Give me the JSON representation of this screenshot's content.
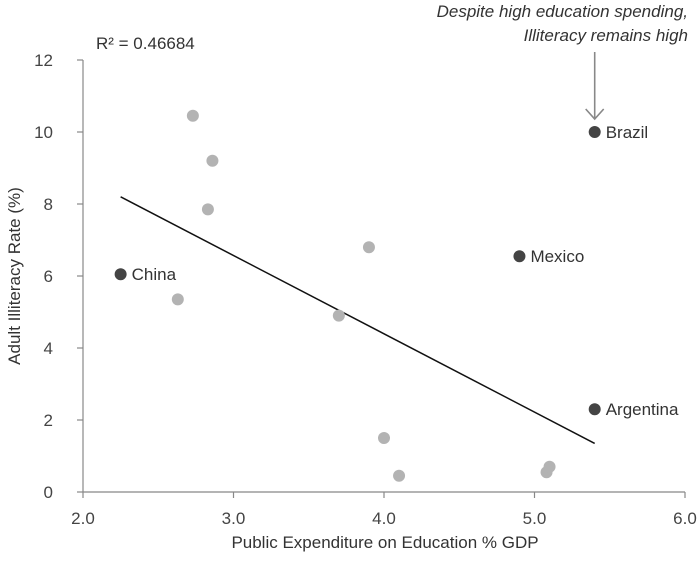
{
  "chart_data": {
    "type": "scatter",
    "xlabel": "Public Expenditure on Education % GDP",
    "ylabel": "Adult Illiteracy Rate (%)",
    "xlim": [
      2.0,
      6.0
    ],
    "ylim": [
      0,
      12
    ],
    "x_ticks": [
      "2.0",
      "3.0",
      "4.0",
      "5.0",
      "6.0"
    ],
    "y_ticks": [
      "0",
      "2",
      "4",
      "6",
      "8",
      "10",
      "12"
    ],
    "grid": false,
    "r_squared_label": "R² = 0.46684",
    "trendline": {
      "x": [
        2.25,
        5.4
      ],
      "y": [
        8.2,
        1.35
      ]
    },
    "highlighted_points": [
      {
        "label": "China",
        "x": 2.25,
        "y": 6.05
      },
      {
        "label": "Mexico",
        "x": 4.9,
        "y": 6.55
      },
      {
        "label": "Brazil",
        "x": 5.4,
        "y": 10.0
      },
      {
        "label": "Argentina",
        "x": 5.4,
        "y": 2.3
      }
    ],
    "other_points": [
      {
        "x": 2.73,
        "y": 10.45
      },
      {
        "x": 2.86,
        "y": 9.2
      },
      {
        "x": 2.83,
        "y": 7.85
      },
      {
        "x": 2.63,
        "y": 5.35
      },
      {
        "x": 3.9,
        "y": 6.8
      },
      {
        "x": 3.7,
        "y": 4.9
      },
      {
        "x": 4.0,
        "y": 1.5
      },
      {
        "x": 4.1,
        "y": 0.45
      },
      {
        "x": 5.08,
        "y": 0.55
      },
      {
        "x": 5.1,
        "y": 0.7
      }
    ],
    "annotation": {
      "lines": [
        "Despite high education spending,",
        "Illiteracy remains high"
      ],
      "points_to": "Brazil"
    },
    "colors": {
      "highlight_point": "#444444",
      "other_point": "#b3b3b3",
      "trendline": "#111111",
      "axis": "#888888",
      "arrow": "#888888"
    }
  }
}
